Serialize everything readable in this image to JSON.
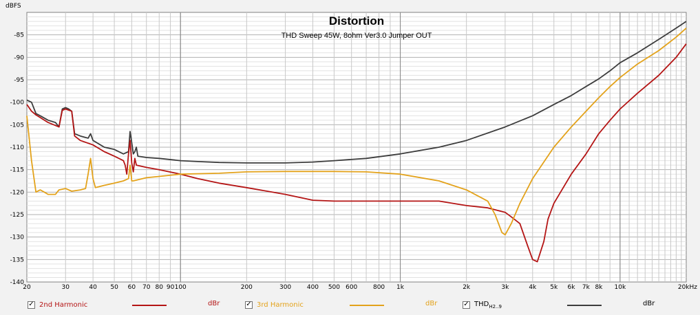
{
  "chart_data": {
    "type": "line",
    "title": "Distortion",
    "subtitle": "THD Sweep 45W, 8ohm Ver3.0 Jumper OUT",
    "ylabel": "dBFS",
    "xscale": "log",
    "xlim": [
      20,
      20000
    ],
    "ylim": [
      -140,
      -80
    ],
    "y_ticks": [
      -85,
      -90,
      -95,
      -100,
      -105,
      -110,
      -115,
      -120,
      -125,
      -130,
      -135,
      -140
    ],
    "x_tick_labels": [
      {
        "v": 20,
        "t": "20"
      },
      {
        "v": 30,
        "t": "30"
      },
      {
        "v": 40,
        "t": "40"
      },
      {
        "v": 50,
        "t": "50"
      },
      {
        "v": 60,
        "t": "60"
      },
      {
        "v": 70,
        "t": "70"
      },
      {
        "v": 80,
        "t": "80"
      },
      {
        "v": 90,
        "t": "90"
      },
      {
        "v": 100,
        "t": "100"
      },
      {
        "v": 200,
        "t": "200"
      },
      {
        "v": 300,
        "t": "300"
      },
      {
        "v": 400,
        "t": "400"
      },
      {
        "v": 500,
        "t": "500"
      },
      {
        "v": 600,
        "t": "600"
      },
      {
        "v": 800,
        "t": "800"
      },
      {
        "v": 1000,
        "t": "1k"
      },
      {
        "v": 2000,
        "t": "2k"
      },
      {
        "v": 3000,
        "t": "3k"
      },
      {
        "v": 4000,
        "t": "4k"
      },
      {
        "v": 5000,
        "t": "5k"
      },
      {
        "v": 6000,
        "t": "6k"
      },
      {
        "v": 7000,
        "t": "7k"
      },
      {
        "v": 8000,
        "t": "8k"
      },
      {
        "v": 10000,
        "t": "10k"
      },
      {
        "v": 20000,
        "t": "20kHz"
      }
    ],
    "grid": true,
    "series": [
      {
        "name": "THD",
        "color": "#3c3c3c",
        "points": [
          [
            20,
            -99.5
          ],
          [
            21,
            -100
          ],
          [
            22,
            -102.5
          ],
          [
            23,
            -103
          ],
          [
            25,
            -104
          ],
          [
            27,
            -104.5
          ],
          [
            28,
            -105.5
          ],
          [
            29,
            -101.5
          ],
          [
            30,
            -101.2
          ],
          [
            31,
            -101.5
          ],
          [
            32,
            -102
          ],
          [
            33,
            -107
          ],
          [
            35,
            -107.5
          ],
          [
            38,
            -108
          ],
          [
            39,
            -107
          ],
          [
            40,
            -108.5
          ],
          [
            45,
            -110
          ],
          [
            50,
            -110.5
          ],
          [
            55,
            -111.5
          ],
          [
            58,
            -111
          ],
          [
            59,
            -106.5
          ],
          [
            60,
            -109
          ],
          [
            61,
            -111.5
          ],
          [
            62,
            -111
          ],
          [
            63,
            -110
          ],
          [
            64,
            -112
          ],
          [
            70,
            -112.3
          ],
          [
            80,
            -112.5
          ],
          [
            100,
            -113
          ],
          [
            120,
            -113.2
          ],
          [
            150,
            -113.4
          ],
          [
            200,
            -113.5
          ],
          [
            300,
            -113.5
          ],
          [
            400,
            -113.3
          ],
          [
            500,
            -113
          ],
          [
            700,
            -112.5
          ],
          [
            1000,
            -111.5
          ],
          [
            1500,
            -110
          ],
          [
            2000,
            -108.5
          ],
          [
            3000,
            -105.5
          ],
          [
            4000,
            -103
          ],
          [
            5000,
            -100.5
          ],
          [
            6000,
            -98.5
          ],
          [
            7000,
            -96.5
          ],
          [
            8000,
            -94.8
          ],
          [
            9000,
            -93
          ],
          [
            10000,
            -91.2
          ],
          [
            12000,
            -89
          ],
          [
            15000,
            -86
          ],
          [
            18000,
            -83.5
          ],
          [
            20000,
            -82
          ]
        ]
      },
      {
        "name": "2nd Harmonic",
        "color": "#b41414",
        "points": [
          [
            20,
            -100.5
          ],
          [
            21,
            -102
          ],
          [
            22,
            -102.8
          ],
          [
            25,
            -104.5
          ],
          [
            28,
            -105.5
          ],
          [
            29,
            -101.8
          ],
          [
            30,
            -101.5
          ],
          [
            32,
            -102
          ],
          [
            33,
            -107.5
          ],
          [
            35,
            -108.5
          ],
          [
            40,
            -109.5
          ],
          [
            45,
            -111
          ],
          [
            50,
            -112
          ],
          [
            55,
            -113
          ],
          [
            56,
            -114
          ],
          [
            57,
            -116
          ],
          [
            58,
            -111.5
          ],
          [
            59,
            -108.5
          ],
          [
            60,
            -113.5
          ],
          [
            61,
            -115.5
          ],
          [
            62,
            -112.5
          ],
          [
            63,
            -114
          ],
          [
            70,
            -114.5
          ],
          [
            80,
            -115
          ],
          [
            100,
            -116
          ],
          [
            120,
            -117
          ],
          [
            150,
            -118
          ],
          [
            200,
            -119
          ],
          [
            300,
            -120.5
          ],
          [
            400,
            -121.8
          ],
          [
            500,
            -122
          ],
          [
            700,
            -122
          ],
          [
            1000,
            -122
          ],
          [
            1500,
            -122
          ],
          [
            2000,
            -123
          ],
          [
            2500,
            -123.5
          ],
          [
            3000,
            -124.5
          ],
          [
            3200,
            -125.5
          ],
          [
            3500,
            -127
          ],
          [
            3800,
            -132
          ],
          [
            4000,
            -135
          ],
          [
            4200,
            -135.5
          ],
          [
            4300,
            -134
          ],
          [
            4500,
            -131
          ],
          [
            4700,
            -126
          ],
          [
            5000,
            -122.5
          ],
          [
            6000,
            -116
          ],
          [
            7000,
            -111.5
          ],
          [
            8000,
            -107
          ],
          [
            9000,
            -104
          ],
          [
            10000,
            -101.5
          ],
          [
            12000,
            -98
          ],
          [
            15000,
            -94
          ],
          [
            18000,
            -90
          ],
          [
            20000,
            -87
          ]
        ]
      },
      {
        "name": "3rd Harmonic",
        "color": "#e3a21a",
        "points": [
          [
            20,
            -103
          ],
          [
            21,
            -113
          ],
          [
            22,
            -120
          ],
          [
            23,
            -119.5
          ],
          [
            24,
            -120
          ],
          [
            25,
            -120.5
          ],
          [
            27,
            -120.5
          ],
          [
            28,
            -119.5
          ],
          [
            30,
            -119.2
          ],
          [
            32,
            -119.8
          ],
          [
            35,
            -119.5
          ],
          [
            37,
            -119.2
          ],
          [
            38,
            -116
          ],
          [
            39,
            -112.5
          ],
          [
            40,
            -117
          ],
          [
            41,
            -119
          ],
          [
            45,
            -118.5
          ],
          [
            50,
            -118
          ],
          [
            55,
            -117.5
          ],
          [
            58,
            -117
          ],
          [
            59,
            -114
          ],
          [
            60,
            -117.5
          ],
          [
            61,
            -117.5
          ],
          [
            70,
            -116.8
          ],
          [
            80,
            -116.5
          ],
          [
            100,
            -116
          ],
          [
            150,
            -115.8
          ],
          [
            200,
            -115.5
          ],
          [
            300,
            -115.4
          ],
          [
            400,
            -115.4
          ],
          [
            500,
            -115.4
          ],
          [
            700,
            -115.5
          ],
          [
            1000,
            -116
          ],
          [
            1500,
            -117.5
          ],
          [
            2000,
            -119.5
          ],
          [
            2500,
            -122
          ],
          [
            2700,
            -125
          ],
          [
            2900,
            -129
          ],
          [
            3000,
            -129.5
          ],
          [
            3200,
            -127
          ],
          [
            3500,
            -122.5
          ],
          [
            4000,
            -117
          ],
          [
            5000,
            -110
          ],
          [
            6000,
            -105.5
          ],
          [
            7000,
            -102
          ],
          [
            8000,
            -99
          ],
          [
            9000,
            -96.5
          ],
          [
            10000,
            -94.5
          ],
          [
            12000,
            -91.5
          ],
          [
            15000,
            -88.5
          ],
          [
            18000,
            -85.5
          ],
          [
            20000,
            -83.5
          ]
        ]
      }
    ]
  },
  "legend": {
    "items": [
      {
        "label": "2nd Harmonic",
        "unit": "dBr",
        "checked": true,
        "color": "#b41414"
      },
      {
        "label": "3rd Harmonic",
        "unit": "dBr",
        "checked": true,
        "color": "#e3a21a"
      },
      {
        "label": "THD",
        "sub": "H2..9",
        "unit": "dBr",
        "checked": true,
        "color": "#3c3c3c"
      }
    ],
    "check_glyph": "✓"
  }
}
